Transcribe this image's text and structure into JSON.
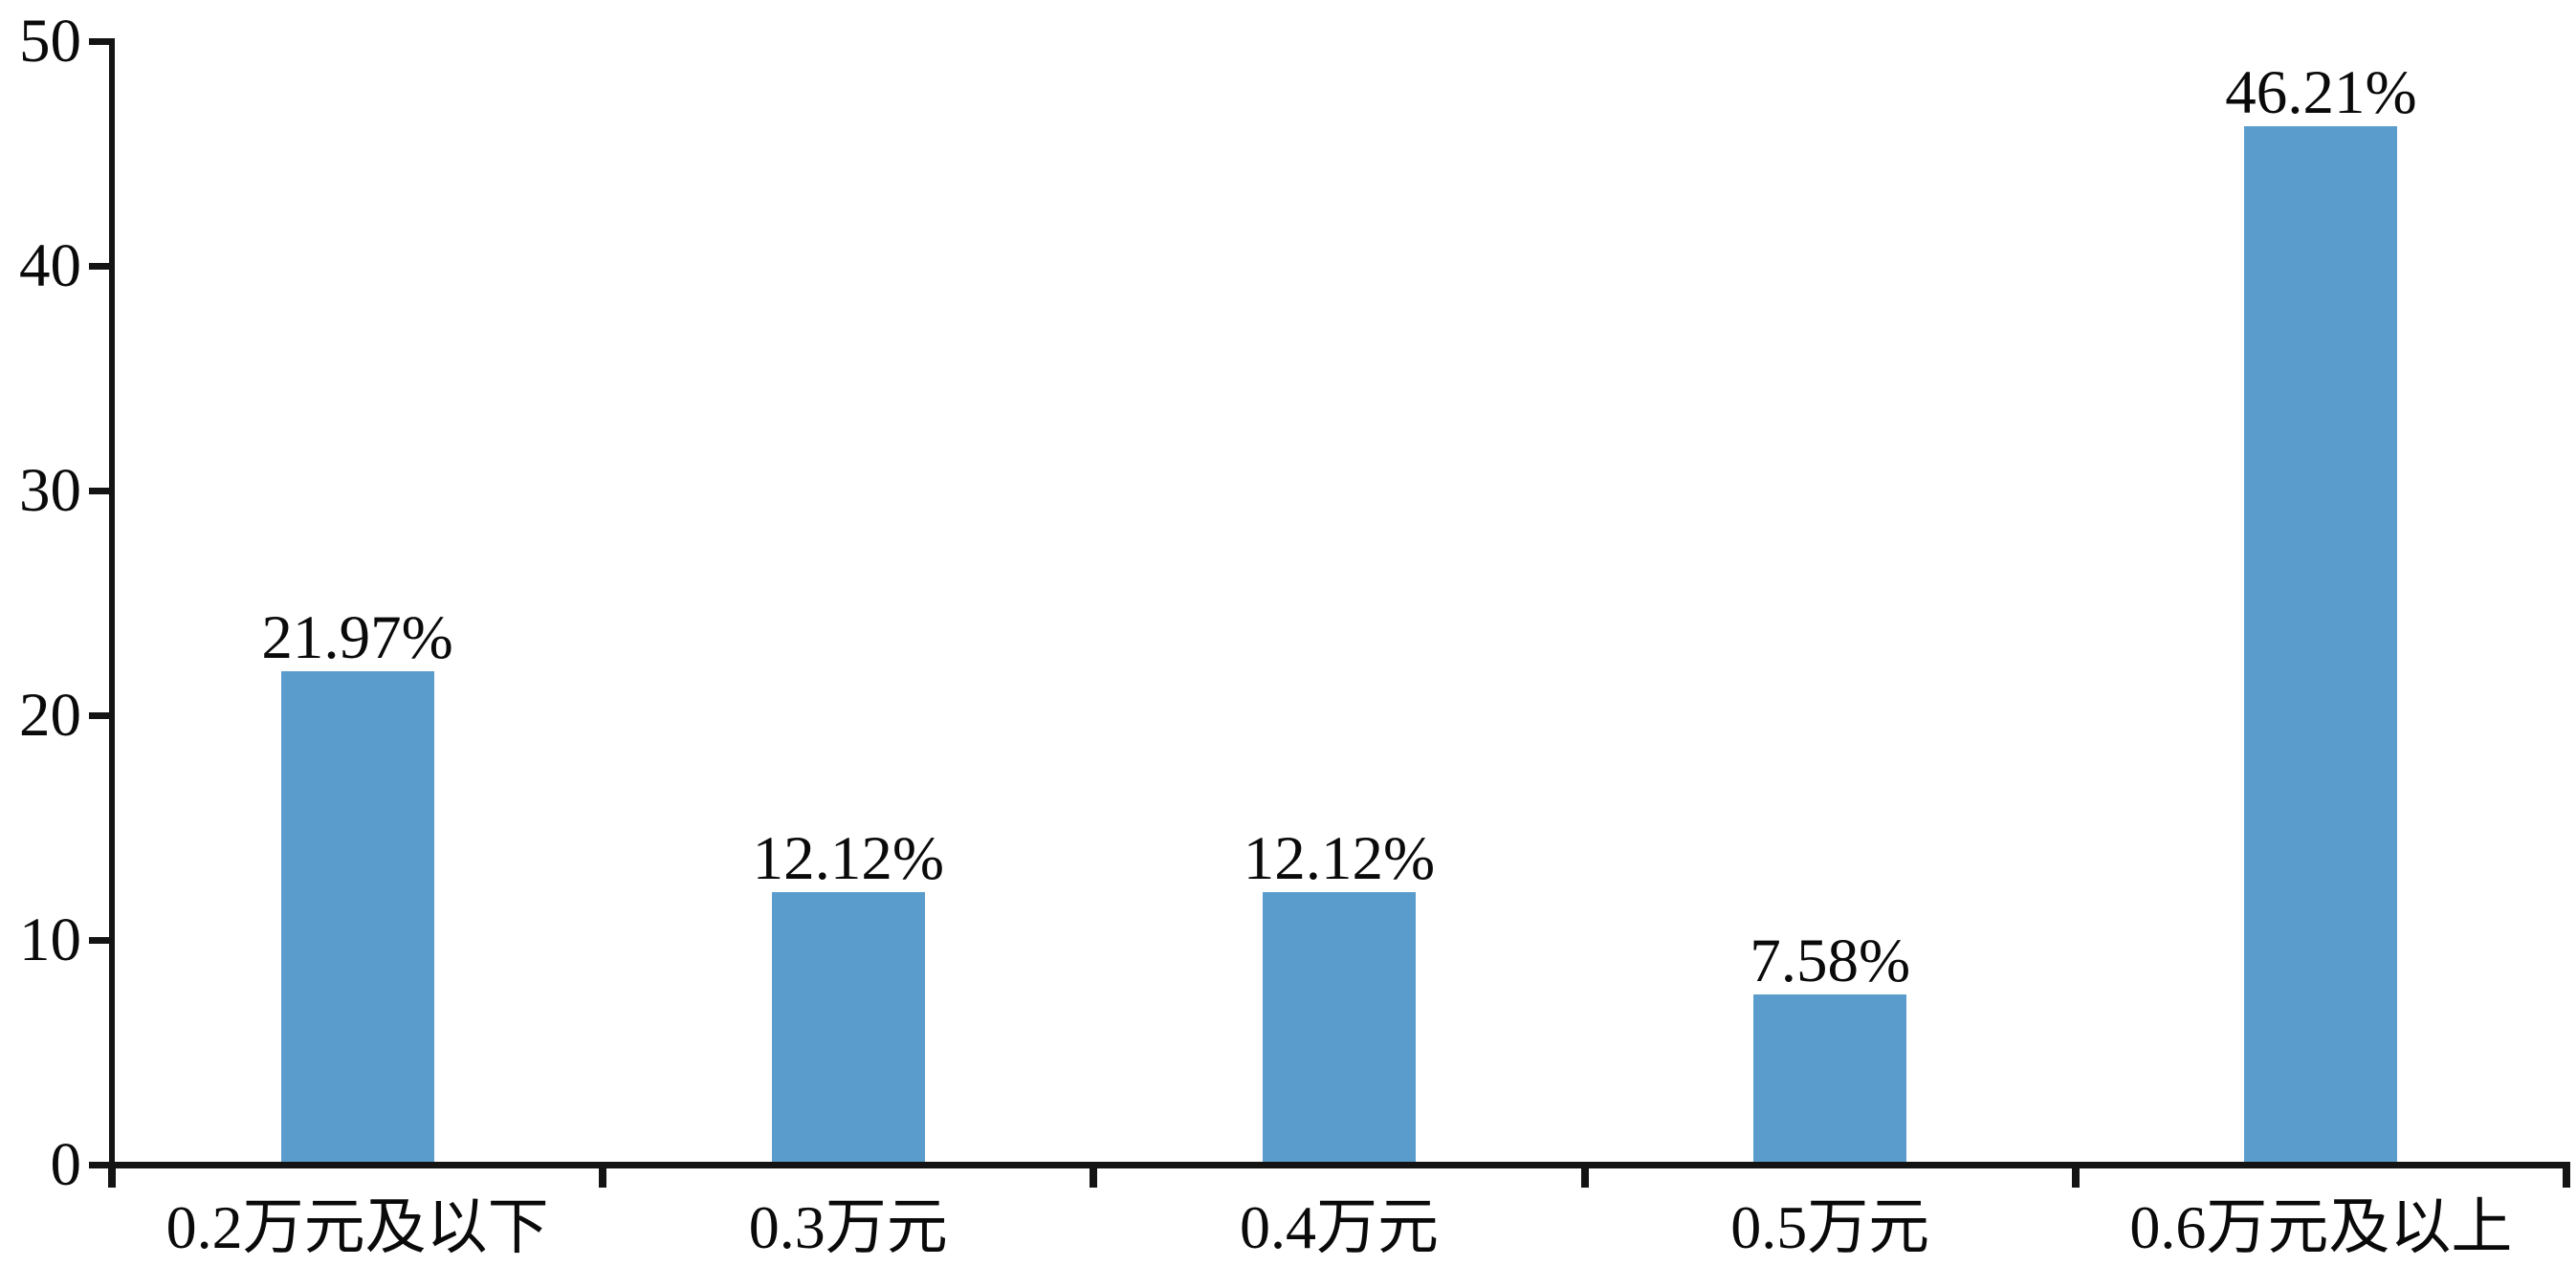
{
  "chart_data": {
    "type": "bar",
    "title": "",
    "xlabel": "",
    "ylabel": "",
    "categories": [
      "0.2万元及以下",
      "0.3万元",
      "0.4万元",
      "0.5万元",
      "0.6万元及以上"
    ],
    "values": [
      21.97,
      12.12,
      12.12,
      7.58,
      46.21
    ],
    "value_labels": [
      "21.97%",
      "12.12%",
      "12.12%",
      "7.58%",
      "46.21%"
    ],
    "ylim": [
      0,
      50
    ],
    "yticks": [
      "0",
      "10",
      "20",
      "30",
      "40",
      "50"
    ],
    "grid": false,
    "legend": false,
    "bar_color": "#5A9DCD",
    "axis_color": "#141414",
    "text_color": "#0a0a0a",
    "background_color": "#ffffff"
  }
}
